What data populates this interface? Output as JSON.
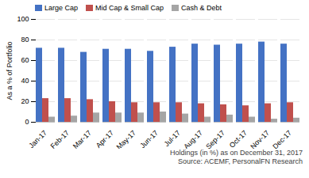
{
  "chart_data": {
    "type": "bar",
    "categories": [
      "Jan-17",
      "Feb-17",
      "Mar-17",
      "Apr-17",
      "May-17",
      "Jun-17",
      "Jul-17",
      "Aug-17",
      "Sep-17",
      "Oct-17",
      "Nov-17",
      "Dec-17"
    ],
    "series": [
      {
        "name": "Large Cap",
        "color": "#4472C4",
        "values": [
          72,
          72,
          68,
          71,
          71,
          69,
          73,
          76,
          75,
          76,
          78,
          76
        ]
      },
      {
        "name": "Mid Cap & Small Cap",
        "color": "#C0504D",
        "values": [
          23,
          23,
          22,
          20,
          19,
          19,
          19,
          18,
          17,
          16,
          18,
          19
        ]
      },
      {
        "name": "Cash & Debt",
        "color": "#A5A5A5",
        "values": [
          5,
          6,
          9,
          9,
          9,
          10,
          8,
          5,
          7,
          5,
          3,
          4
        ]
      }
    ],
    "ylabel": "As a % of Portfolio",
    "ylim": [
      0,
      100
    ],
    "yticks": [
      0,
      20,
      40,
      60,
      80,
      100
    ],
    "grid": true,
    "legend": "upper left",
    "annotations": [
      "Holdings (in %) as on December 31, 2017",
      "Source: ACEMF, PersonalFN Research"
    ]
  }
}
